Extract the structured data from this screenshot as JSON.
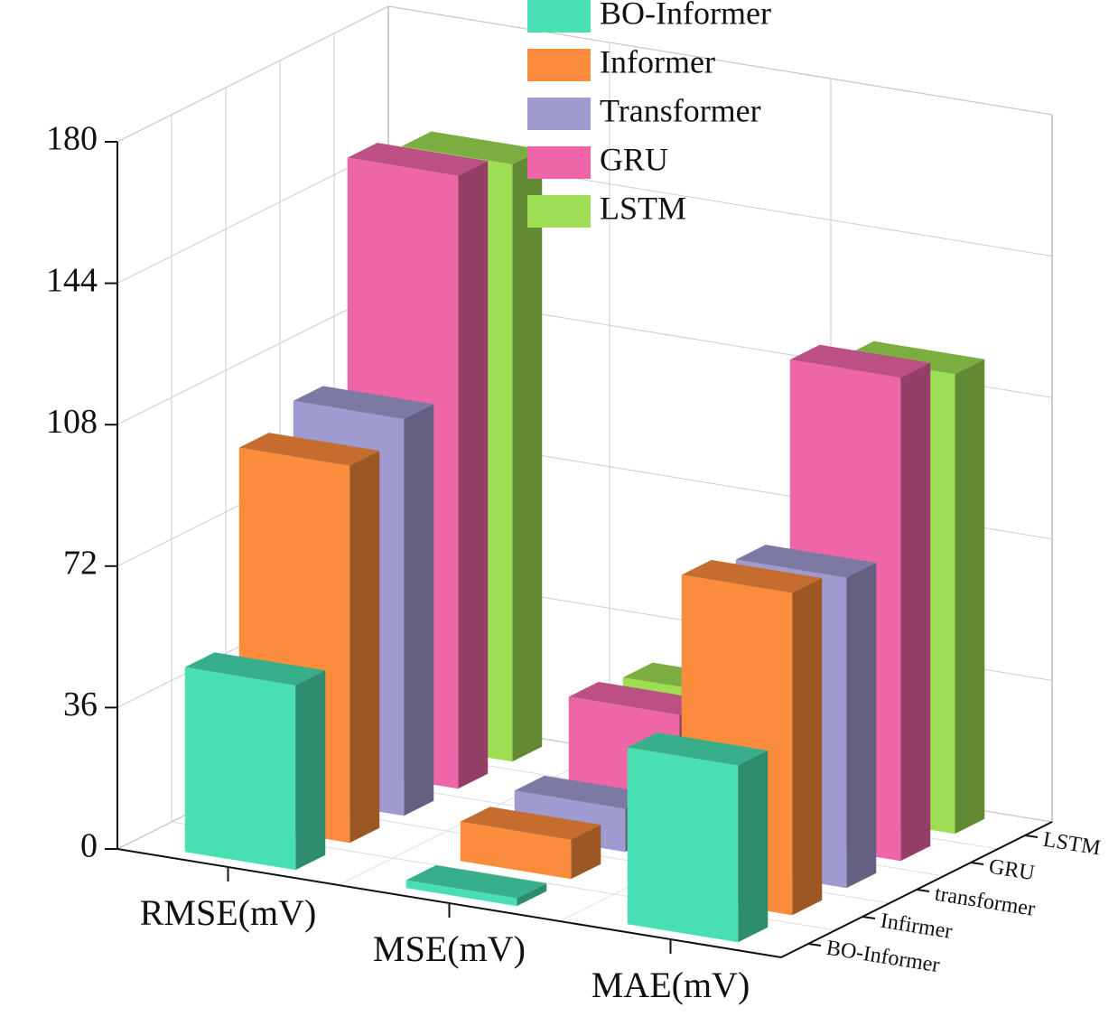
{
  "chart_data": {
    "type": "bar3d",
    "categories": [
      "RMSE(mV)",
      "MSE(mV)",
      "MAE(mV)"
    ],
    "depth_categories": [
      "BO-Informer",
      "Infirmer",
      "transformer",
      "GRU",
      "LSTM"
    ],
    "ylim": [
      0,
      180
    ],
    "yticks": [
      0,
      36,
      72,
      108,
      144,
      180
    ],
    "grid": true,
    "series": [
      {
        "name": "BO-Informer",
        "color": "#48e0b2",
        "values": [
          47,
          2,
          45
        ]
      },
      {
        "name": "Informer",
        "color": "#fb8c3c",
        "values": [
          96,
          10,
          82
        ]
      },
      {
        "name": "Transformer",
        "color": "#9f9bd0",
        "values": [
          101,
          11,
          79
        ]
      },
      {
        "name": "GRU",
        "color": "#ef66a8",
        "values": [
          156,
          28,
          123
        ]
      },
      {
        "name": "LSTM",
        "color": "#9ede52",
        "values": [
          152,
          26,
          117
        ]
      }
    ]
  }
}
